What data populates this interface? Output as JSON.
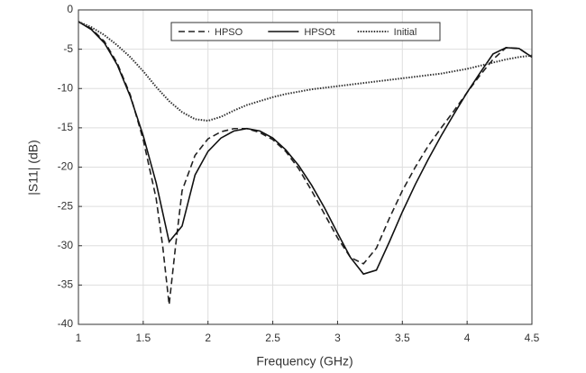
{
  "chart_data": {
    "type": "line",
    "xlabel": "Frequency (GHz)",
    "ylabel": "|S11| (dB)",
    "xlim": [
      1,
      4.5
    ],
    "ylim": [
      -40,
      0
    ],
    "xticks": [
      1,
      1.5,
      2,
      2.5,
      3,
      3.5,
      4,
      4.5
    ],
    "yticks": [
      -40,
      -35,
      -30,
      -25,
      -20,
      -15,
      -10,
      -5,
      0
    ],
    "grid": true,
    "legend": "top",
    "series": [
      {
        "name": "HPSO",
        "color": "#222222",
        "style": "dashed",
        "x": [
          1,
          1.1,
          1.2,
          1.3,
          1.4,
          1.5,
          1.6,
          1.65,
          1.7,
          1.75,
          1.8,
          1.9,
          2.0,
          2.1,
          2.2,
          2.3,
          2.4,
          2.5,
          2.6,
          2.7,
          2.8,
          2.9,
          3.0,
          3.1,
          3.2,
          3.3,
          3.4,
          3.5,
          3.6,
          3.7,
          3.8,
          3.9,
          4.0,
          4.1,
          4.2,
          4.3,
          4.4,
          4.5
        ],
        "values": [
          -1.5,
          -2.4,
          -4,
          -6.8,
          -10.8,
          -16.5,
          -24,
          -30,
          -37.5,
          -30,
          -23,
          -18.5,
          -16.4,
          -15.5,
          -15.1,
          -15.1,
          -15.6,
          -16.5,
          -18,
          -20.2,
          -23,
          -26,
          -29,
          -31.5,
          -32.3,
          -30.3,
          -26.5,
          -23,
          -20,
          -17.3,
          -15,
          -12.8,
          -10.5,
          -8.3,
          -6.3,
          -4.8,
          -4.9,
          -6
        ]
      },
      {
        "name": "HPSOt",
        "color": "#111111",
        "style": "solid",
        "x": [
          1,
          1.1,
          1.2,
          1.3,
          1.4,
          1.5,
          1.6,
          1.7,
          1.8,
          1.9,
          2.0,
          2.1,
          2.2,
          2.3,
          2.4,
          2.5,
          2.6,
          2.7,
          2.8,
          2.9,
          3.0,
          3.1,
          3.2,
          3.3,
          3.4,
          3.5,
          3.6,
          3.7,
          3.8,
          3.9,
          4.0,
          4.1,
          4.2,
          4.3,
          4.4,
          4.5
        ],
        "values": [
          -1.5,
          -2.5,
          -4.2,
          -7,
          -11,
          -16,
          -22,
          -29.5,
          -27.5,
          -21,
          -18,
          -16.3,
          -15.4,
          -15.1,
          -15.4,
          -16.3,
          -17.8,
          -19.8,
          -22.3,
          -25.2,
          -28.4,
          -31.5,
          -33.6,
          -33.1,
          -29.5,
          -25.7,
          -22.2,
          -19,
          -16,
          -13.2,
          -10.5,
          -8,
          -5.6,
          -4.8,
          -4.9,
          -6
        ]
      },
      {
        "name": "Initial",
        "color": "#333333",
        "style": "dotted",
        "x": [
          1,
          1.1,
          1.2,
          1.3,
          1.4,
          1.5,
          1.6,
          1.7,
          1.8,
          1.9,
          2.0,
          2.1,
          2.2,
          2.3,
          2.4,
          2.5,
          2.6,
          2.7,
          2.8,
          2.9,
          3.0,
          3.1,
          3.2,
          3.3,
          3.4,
          3.5,
          3.6,
          3.7,
          3.8,
          3.9,
          4.0,
          4.1,
          4.2,
          4.3,
          4.4,
          4.5
        ],
        "values": [
          -1.5,
          -2.2,
          -3.2,
          -4.5,
          -6,
          -7.8,
          -9.8,
          -11.6,
          -13,
          -13.9,
          -14.1,
          -13.6,
          -12.8,
          -12.1,
          -11.6,
          -11.1,
          -10.7,
          -10.4,
          -10.1,
          -9.9,
          -9.7,
          -9.5,
          -9.3,
          -9.1,
          -8.9,
          -8.7,
          -8.5,
          -8.3,
          -8.1,
          -7.8,
          -7.5,
          -7.1,
          -6.7,
          -6.3,
          -6.0,
          -5.8
        ]
      }
    ]
  }
}
